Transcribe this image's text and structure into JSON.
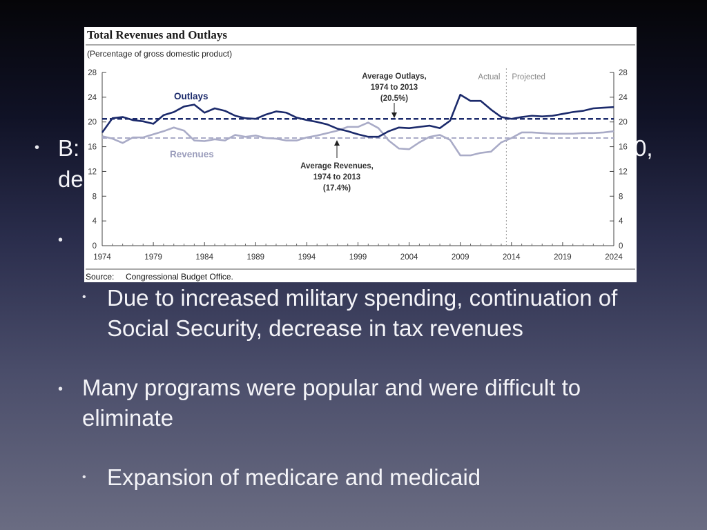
{
  "slide": {
    "bullets": [
      {
        "level": 1,
        "text": "B: 1980s government spending grew; by 1990,",
        "visible_prefix": "B:",
        "visible_suffix": "0,"
      },
      {
        "level": 1,
        "text_line2_prefix": "de"
      },
      {
        "level": 2,
        "text": "Due to increased military spending, continuation of Social Security, decrease in tax revenues",
        "line1": "Due to increased military spending, continuation of",
        "line2": "Social Security, decrease in tax revenues"
      },
      {
        "level": 1,
        "line1": "Many programs were popular and were difficult to",
        "line2": "eliminate"
      },
      {
        "level": 2,
        "line1": "Expansion of medicare and medicaid"
      }
    ]
  },
  "chart_data": {
    "type": "line",
    "title": "Total Revenues and Outlays",
    "subtitle": "(Percentage of gross domestic product)",
    "source": "Source:",
    "source_org": "Congressional Budget Office.",
    "ylim": [
      0,
      28
    ],
    "yticks": [
      "0",
      "4",
      "8",
      "12",
      "16",
      "20",
      "24",
      "28"
    ],
    "xlim": [
      1974,
      2024
    ],
    "xticks": [
      "1974",
      "1979",
      "1984",
      "1989",
      "1994",
      "1999",
      "2004",
      "2009",
      "2014",
      "2019",
      "2024"
    ],
    "x": [
      1974,
      1975,
      1976,
      1977,
      1978,
      1979,
      1980,
      1981,
      1982,
      1983,
      1984,
      1985,
      1986,
      1987,
      1988,
      1989,
      1990,
      1991,
      1992,
      1993,
      1994,
      1995,
      1996,
      1997,
      1998,
      1999,
      2000,
      2001,
      2002,
      2003,
      2004,
      2005,
      2006,
      2007,
      2008,
      2009,
      2010,
      2011,
      2012,
      2013,
      2014,
      2015,
      2016,
      2017,
      2018,
      2019,
      2020,
      2021,
      2022,
      2023,
      2024
    ],
    "series": [
      {
        "name": "Outlays",
        "color": "#1b2a6b",
        "values": [
          18.3,
          20.6,
          20.8,
          20.3,
          20.1,
          19.7,
          21.1,
          21.6,
          22.5,
          22.8,
          21.5,
          22.2,
          21.8,
          21.0,
          20.6,
          20.5,
          21.2,
          21.7,
          21.5,
          20.7,
          20.3,
          20.0,
          19.6,
          18.9,
          18.5,
          18.0,
          17.6,
          17.6,
          18.5,
          19.1,
          19.0,
          19.2,
          19.4,
          19.0,
          20.2,
          24.4,
          23.4,
          23.4,
          22.0,
          20.8,
          20.5,
          20.8,
          21.0,
          20.9,
          21.0,
          21.3,
          21.6,
          21.8,
          22.2,
          22.3,
          22.4
        ]
      },
      {
        "name": "Revenues",
        "color": "#a9abc7",
        "values": [
          17.7,
          17.3,
          16.6,
          17.5,
          17.5,
          18.0,
          18.5,
          19.1,
          18.6,
          17.0,
          16.9,
          17.2,
          17.0,
          17.9,
          17.6,
          17.8,
          17.4,
          17.3,
          17.0,
          17.0,
          17.5,
          17.8,
          18.2,
          18.6,
          19.2,
          19.2,
          19.9,
          19.0,
          17.0,
          15.7,
          15.6,
          16.7,
          17.6,
          17.9,
          17.1,
          14.6,
          14.6,
          15.0,
          15.2,
          16.7,
          17.4,
          18.3,
          18.3,
          18.2,
          18.1,
          18.1,
          18.1,
          18.2,
          18.2,
          18.3,
          18.5
        ]
      }
    ],
    "reference_lines": [
      {
        "label": "Average Outlays, 1974 to 2013 (20.5%)",
        "value": 20.5,
        "color": "#1b2a6b"
      },
      {
        "label": "Average Revenues, 1974 to 2013 (17.4%)",
        "value": 17.4,
        "color": "#a9abc7"
      }
    ],
    "annotations": {
      "outlays_avg": [
        "Average Outlays,",
        "1974 to 2013",
        "(20.5%)"
      ],
      "revenues_avg": [
        "Average Revenues,",
        "1974 to 2013",
        "(17.4%)"
      ],
      "actual": "Actual",
      "projected": "Projected",
      "split_year": 2013.5
    },
    "grid": false,
    "legend": "inline labels"
  }
}
